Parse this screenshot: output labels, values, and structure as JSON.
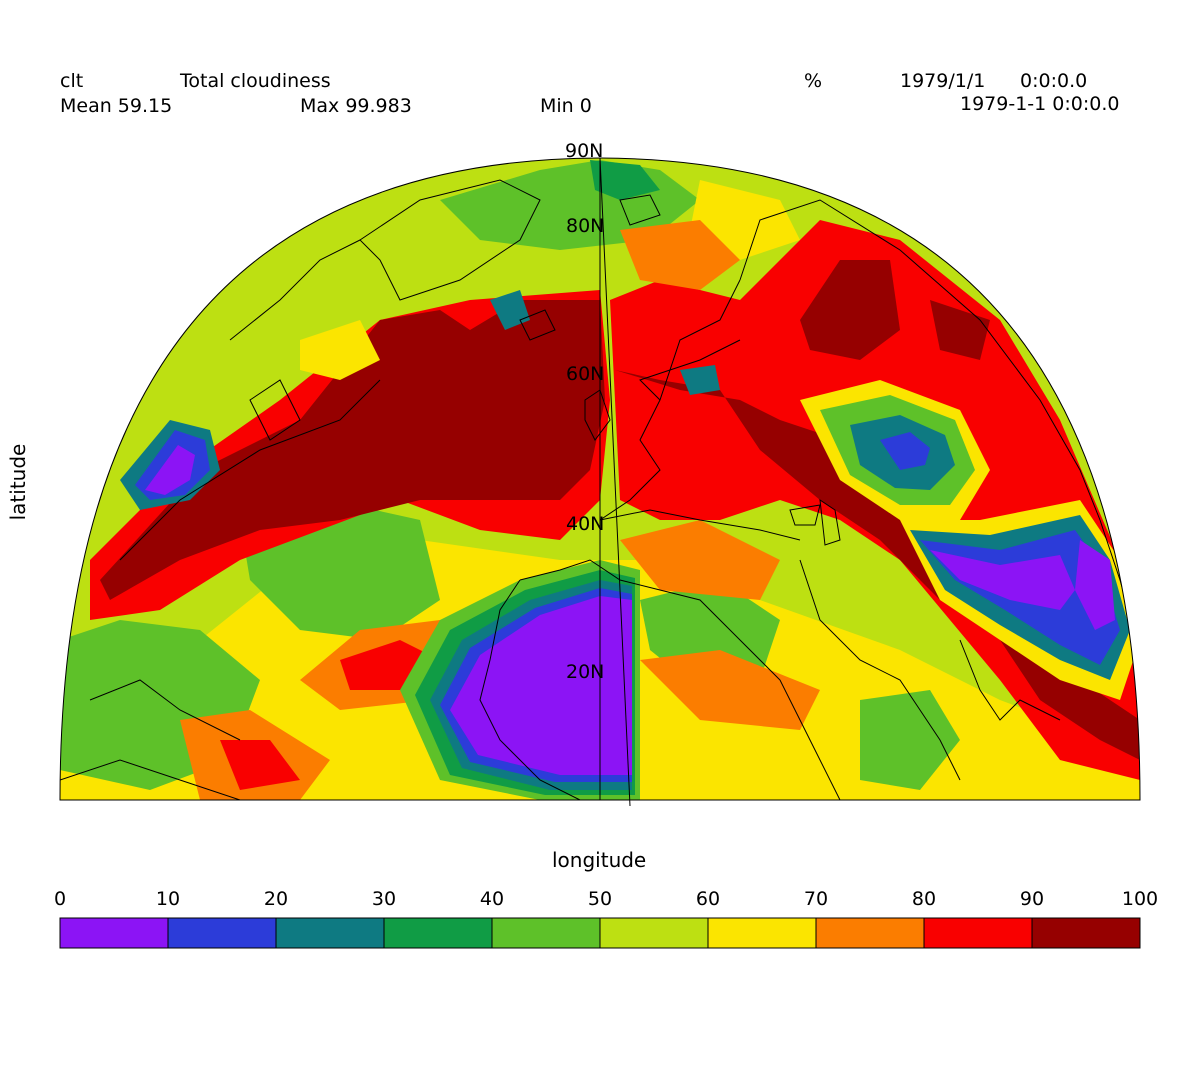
{
  "header": {
    "var_name": "clt",
    "long_name": "Total cloudiness",
    "units": "%",
    "date1": "1979/1/1",
    "time1": "0:0:0.0",
    "mean_label": "Mean 59.15",
    "max_label": "Max 99.983",
    "min_label": "Min 0",
    "datetime2": "1979-1-1 0:0:0.0"
  },
  "axes": {
    "xlabel": "longitude",
    "ylabel": "latitude",
    "lat_labels": [
      "90N",
      "80N",
      "60N",
      "40N",
      "20N"
    ]
  },
  "legend": {
    "ticks": [
      "0",
      "10",
      "20",
      "30",
      "40",
      "50",
      "60",
      "70",
      "80",
      "90",
      "100"
    ],
    "colors": [
      "#8c14f5",
      "#2c3cd9",
      "#0e7a82",
      "#109c45",
      "#5ec129",
      "#bde012",
      "#fbe500",
      "#fb7d00",
      "#f90000",
      "#960000"
    ]
  },
  "map_colors": {
    "c0": "#8c14f5",
    "c10": "#2c3cd9",
    "c20": "#0e7a82",
    "c30": "#109c45",
    "c40": "#5ec129",
    "c50": "#bde012",
    "c60": "#fbe500",
    "c70": "#fb7d00",
    "c80": "#f90000",
    "c90": "#960000"
  }
}
